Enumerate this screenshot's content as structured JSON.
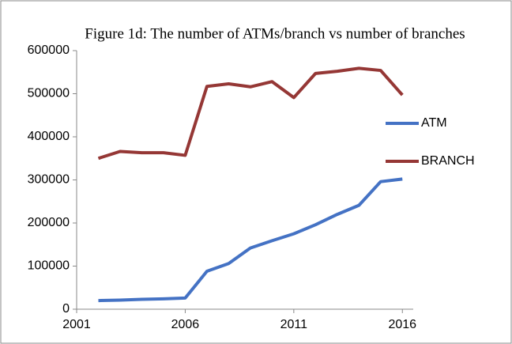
{
  "chart_data": {
    "type": "line",
    "title": "Figure 1d: The number of ATMs/branch vs number of branches",
    "x": [
      2002,
      2003,
      2004,
      2005,
      2006,
      2007,
      2008,
      2009,
      2010,
      2011,
      2012,
      2013,
      2014,
      2015,
      2016
    ],
    "series": [
      {
        "name": "ATM",
        "color": "#4472c4",
        "values": [
          20000,
          21000,
          23000,
          24000,
          26000,
          88000,
          106000,
          142000,
          159000,
          175000,
          196000,
          220000,
          241000,
          296000,
          302000
        ]
      },
      {
        "name": "BRANCH",
        "color": "#953735",
        "values": [
          350000,
          366000,
          363000,
          363000,
          357000,
          517000,
          523000,
          516000,
          528000,
          491000,
          547000,
          552000,
          559000,
          554000,
          497000
        ]
      }
    ],
    "xlim": [
      2001,
      2016.5
    ],
    "xticks": [
      2001,
      2006,
      2011,
      2016
    ],
    "ylim": [
      0,
      600000
    ],
    "yticks": [
      0,
      100000,
      200000,
      300000,
      400000,
      500000,
      600000
    ],
    "grid": false,
    "legend": "right"
  }
}
